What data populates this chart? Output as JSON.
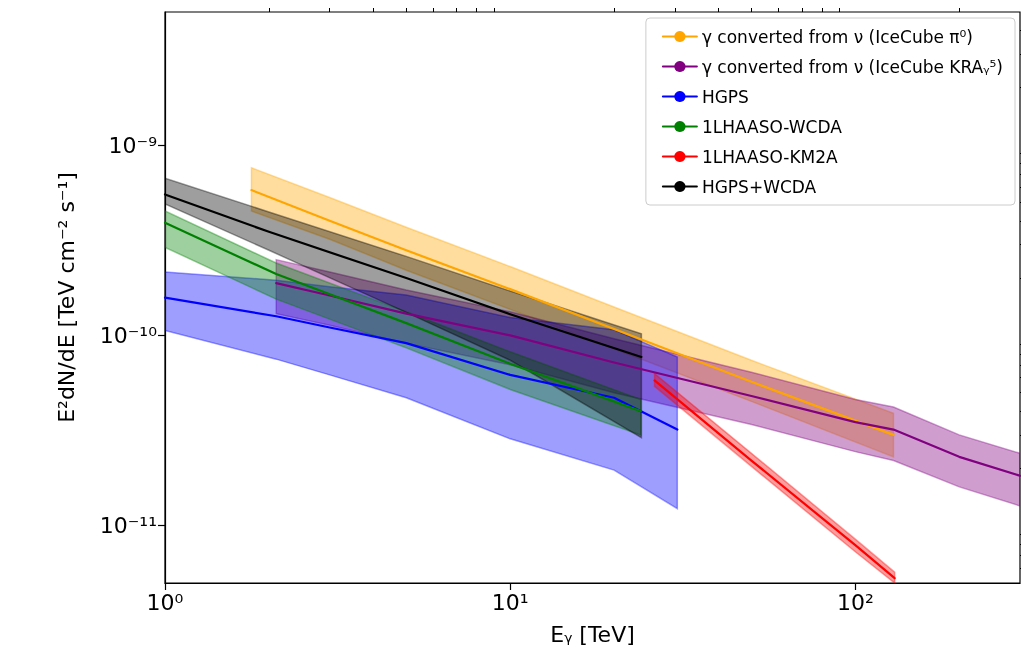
{
  "chart_data": {
    "type": "line",
    "xlabel": "Eᵧ [TeV]",
    "ylabel": "E²dN/dE [TeV cm⁻² s⁻¹]",
    "log": "xy",
    "legend": "top right",
    "grid": false,
    "xlim": [
      1,
      300
    ],
    "ylim": [
      5e-12,
      5e-09
    ],
    "xticks": [
      {
        "value": 1,
        "label": "10⁰"
      },
      {
        "value": 2,
        "label": null
      },
      {
        "value": 3,
        "label": null
      },
      {
        "value": 4,
        "label": null
      },
      {
        "value": 5,
        "label": null
      },
      {
        "value": 6,
        "label": null
      },
      {
        "value": 7,
        "label": null
      },
      {
        "value": 8,
        "label": null
      },
      {
        "value": 9,
        "label": null
      },
      {
        "value": 10,
        "label": "10¹"
      },
      {
        "value": 20,
        "label": null
      },
      {
        "value": 30,
        "label": null
      },
      {
        "value": 40,
        "label": null
      },
      {
        "value": 50,
        "label": null
      },
      {
        "value": 60,
        "label": null
      },
      {
        "value": 70,
        "label": null
      },
      {
        "value": 80,
        "label": null
      },
      {
        "value": 90,
        "label": null
      },
      {
        "value": 100,
        "label": "10²"
      },
      {
        "value": 200,
        "label": null
      }
    ],
    "yticks": [
      {
        "value": 6e-12,
        "label": null
      },
      {
        "value": 7e-12,
        "label": null
      },
      {
        "value": 8e-12,
        "label": null
      },
      {
        "value": 9e-12,
        "label": null
      },
      {
        "value": 1e-11,
        "label": "10⁻¹¹"
      },
      {
        "value": 2e-11,
        "label": null
      },
      {
        "value": 3e-11,
        "label": null
      },
      {
        "value": 4e-11,
        "label": null
      },
      {
        "value": 5e-11,
        "label": null
      },
      {
        "value": 6e-11,
        "label": null
      },
      {
        "value": 7e-11,
        "label": null
      },
      {
        "value": 8e-11,
        "label": null
      },
      {
        "value": 9e-11,
        "label": null
      },
      {
        "value": 1e-10,
        "label": "10⁻¹⁰"
      },
      {
        "value": 2e-10,
        "label": null
      },
      {
        "value": 3e-10,
        "label": null
      },
      {
        "value": 4e-10,
        "label": null
      },
      {
        "value": 5e-10,
        "label": null
      },
      {
        "value": 6e-10,
        "label": null
      },
      {
        "value": 7e-10,
        "label": null
      },
      {
        "value": 8e-10,
        "label": null
      },
      {
        "value": 9e-10,
        "label": null
      },
      {
        "value": 1e-09,
        "label": "10⁻⁹"
      },
      {
        "value": 2e-09,
        "label": null
      },
      {
        "value": 3e-09,
        "label": null
      },
      {
        "value": 4e-09,
        "label": null
      }
    ],
    "series": [
      {
        "name": "γ converted from ν (IceCube π⁰)",
        "color": "#ffa500",
        "x": [
          1.78,
          3,
          5,
          10,
          20,
          50,
          129
        ],
        "values": [
          5.8e-10,
          4e-10,
          2.8e-10,
          1.75e-10,
          1.08e-10,
          5.7e-11,
          3e-11
        ],
        "upper": [
          7.6e-10,
          5.3e-10,
          3.7e-10,
          2.3e-10,
          1.41e-10,
          7.4e-11,
          3.9e-11
        ],
        "lower": [
          4.5e-10,
          3.2e-10,
          2.2e-10,
          1.37e-10,
          8.5e-11,
          4.5e-11,
          2.3e-11
        ]
      },
      {
        "name": "γ converted from ν (IceCube KRAᵧ⁵)",
        "color": "#800080",
        "x": [
          2.1,
          3,
          5,
          10,
          20,
          50,
          100,
          129,
          200,
          300
        ],
        "values": [
          1.88e-10,
          1.62e-10,
          1.3e-10,
          1e-10,
          7.2e-11,
          4.8e-11,
          3.5e-11,
          3.2e-11,
          2.3e-11,
          1.83e-11
        ],
        "upper": [
          2.5e-10,
          2.15e-10,
          1.73e-10,
          1.33e-10,
          9.6e-11,
          6.4e-11,
          4.6e-11,
          4.2e-11,
          3e-11,
          2.4e-11
        ],
        "lower": [
          1.3e-10,
          1.13e-10,
          9.1e-11,
          7e-11,
          5e-11,
          3.4e-11,
          2.45e-11,
          2.2e-11,
          1.6e-11,
          1.27e-11
        ]
      },
      {
        "name": "HGPS",
        "color": "#0000ff",
        "x": [
          1,
          2.1,
          3,
          5,
          10,
          20,
          30.5
        ],
        "values": [
          1.58e-10,
          1.26e-10,
          1.1e-10,
          9.1e-11,
          6.2e-11,
          4.7e-11,
          3.2e-11
        ],
        "upper": [
          2.15e-10,
          1.95e-10,
          1.8e-10,
          1.63e-10,
          1.24e-10,
          1.07e-10,
          7.7e-11
        ],
        "lower": [
          1.06e-10,
          7.5e-11,
          6.2e-11,
          4.7e-11,
          2.86e-11,
          1.96e-11,
          1.23e-11
        ]
      },
      {
        "name": "1LHAASO-WCDA",
        "color": "#008000",
        "x": [
          1,
          2.1,
          5,
          10,
          23.9
        ],
        "values": [
          3.9e-10,
          2.1e-10,
          1.16e-10,
          7.1e-11,
          4e-11
        ],
        "upper": [
          4.5e-10,
          2.4e-10,
          1.33e-10,
          8.2e-11,
          4.6e-11
        ],
        "lower": [
          2.9e-10,
          1.55e-10,
          8.6e-11,
          5.2e-11,
          3e-11
        ]
      },
      {
        "name": "1LHAASO-KM2A",
        "color": "#ff0000",
        "x": [
          26.2,
          50,
          100,
          130
        ],
        "values": [
          5.8e-11,
          2.2e-11,
          7.9e-12,
          5.3e-12
        ],
        "upper": [
          6.3e-11,
          2.4e-11,
          8.5e-12,
          5.7e-12
        ],
        "lower": [
          5.4e-11,
          2.05e-11,
          7.3e-12,
          5e-12
        ]
      },
      {
        "name": "HGPS+WCDA",
        "color": "#000000",
        "x": [
          1,
          2,
          5,
          10,
          24
        ],
        "values": [
          5.5e-10,
          3.5e-10,
          2e-10,
          1.29e-10,
          7.7e-11
        ],
        "upper": [
          6.7e-10,
          4.45e-10,
          2.6e-10,
          1.71e-10,
          1.02e-10
        ],
        "lower": [
          4.9e-10,
          2.8e-10,
          1.32e-10,
          7.4e-11,
          2.9e-11
        ]
      }
    ]
  }
}
